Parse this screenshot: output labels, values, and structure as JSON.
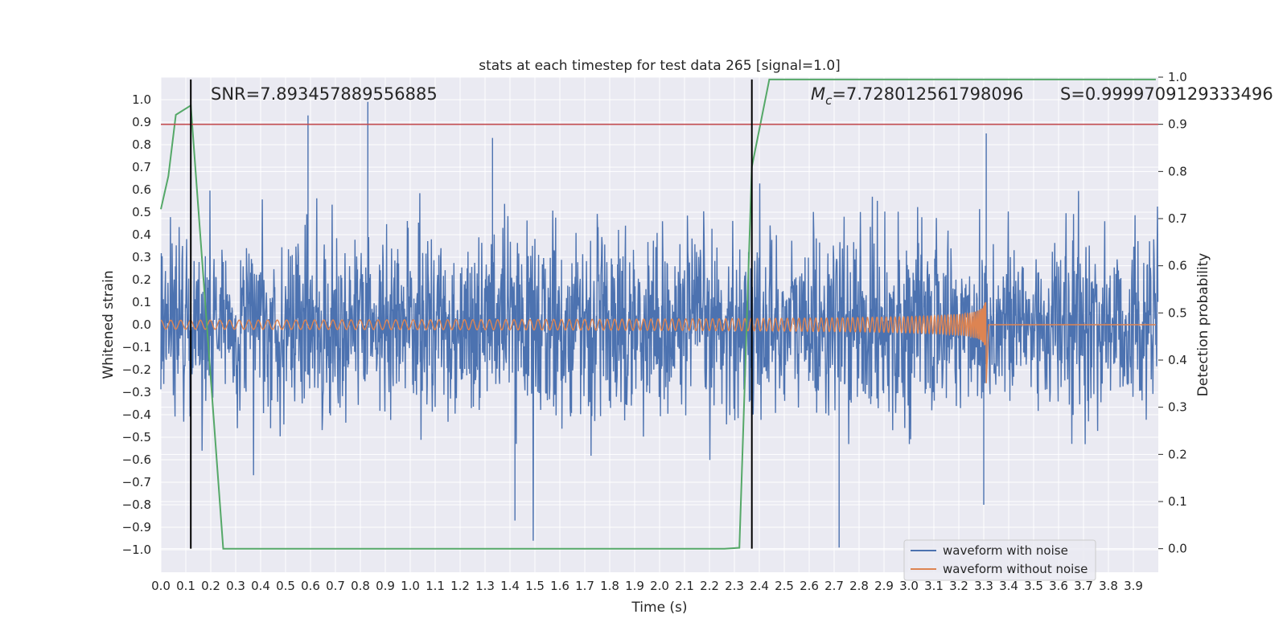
{
  "chart_data": {
    "type": "line",
    "title": "stats at each timestep for test data 265 [signal=1.0]",
    "xlabel": "Time (s)",
    "ylabel": "Whitened strain",
    "ylabel_right": "Detection probability",
    "xlim": [
      0.0,
      4.0
    ],
    "ylim": [
      -1.1,
      1.1
    ],
    "ylim_right": [
      -0.05,
      1.0
    ],
    "x_ticks": [
      "0.0",
      "0.1",
      "0.2",
      "0.3",
      "0.4",
      "0.5",
      "0.6",
      "0.7",
      "0.8",
      "0.9",
      "1.0",
      "1.1",
      "1.2",
      "1.3",
      "1.4",
      "1.5",
      "1.6",
      "1.7",
      "1.8",
      "1.9",
      "2.0",
      "2.1",
      "2.2",
      "2.3",
      "2.4",
      "2.5",
      "2.6",
      "2.7",
      "2.8",
      "2.9",
      "3.0",
      "3.1",
      "3.2",
      "3.3",
      "3.4",
      "3.5",
      "3.6",
      "3.7",
      "3.8",
      "3.9"
    ],
    "y_ticks": [
      "1.0",
      "0.9",
      "0.8",
      "0.7",
      "0.6",
      "0.5",
      "0.4",
      "0.3",
      "0.2",
      "0.1",
      "0.0",
      "−0.1",
      "−0.2",
      "−0.3",
      "−0.4",
      "−0.5",
      "−0.6",
      "−0.7",
      "−0.8",
      "−0.9",
      "−1.0"
    ],
    "y_ticks_right": [
      "1.0",
      "0.9",
      "0.8",
      "0.7",
      "0.6",
      "0.5",
      "0.4",
      "0.3",
      "0.2",
      "0.1",
      "0.0"
    ],
    "grid": true,
    "legend_position": "lower-right",
    "annotations": {
      "snr_prefix": "SNR=7.893457889556885",
      "mc_symbol": "M",
      "mc_subscript": "c",
      "mc_value": "=7.728012561798096",
      "s_text": "S=0.9999709129333496"
    },
    "threshold_right": 0.9,
    "vertical_markers_x": [
      0.12,
      2.37
    ],
    "series": [
      {
        "name": "waveform with noise",
        "color": "#4c72b0",
        "description_free_values": {
          "noise_sigma_approx": 0.2,
          "peak_values": [
            [
              0.12,
              0.93
            ],
            [
              0.83,
              0.99
            ],
            [
              0.59,
              0.93
            ],
            [
              1.33,
              0.83
            ],
            [
              3.31,
              0.85
            ],
            [
              1.42,
              -0.87
            ],
            [
              2.72,
              -0.99
            ],
            [
              3.3,
              -0.8
            ]
          ]
        }
      },
      {
        "name": "waveform without noise",
        "color": "#dd8452",
        "chirp": {
          "start_amplitude": 0.02,
          "merger_time": 3.31,
          "peak_amplitude": 0.2,
          "start_frequency_hz": 25
        }
      },
      {
        "name": "",
        "color": "#55a868",
        "axis": "right",
        "x": [
          0.0,
          0.03,
          0.06,
          0.12,
          0.25,
          0.31,
          2.26,
          2.32,
          2.37,
          2.44,
          3.99
        ],
        "values": [
          0.72,
          0.79,
          0.92,
          0.94,
          0.0,
          0.0,
          0.0,
          0.002,
          0.81,
          0.995,
          0.995
        ]
      }
    ],
    "colors": {
      "background": "#eaeaf2",
      "grid": "#ffffff",
      "threshold": "#c44e52",
      "marker": "#000000",
      "legend_frame": "#cccccc"
    }
  }
}
